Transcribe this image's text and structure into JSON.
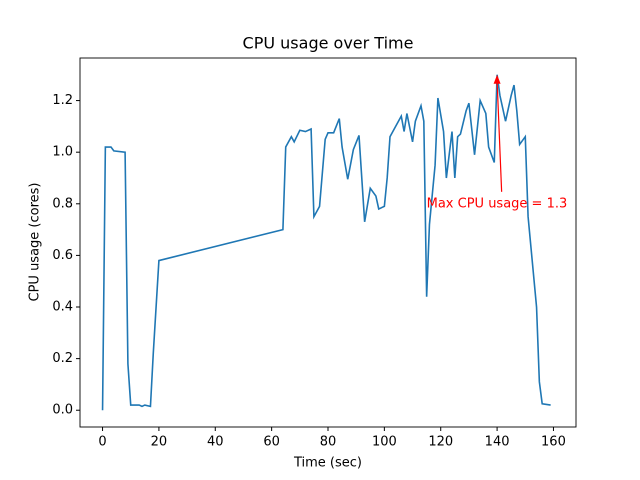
{
  "chart_data": {
    "type": "line",
    "title": "CPU usage over Time",
    "xlabel": "Time (sec)",
    "ylabel": "CPU usage (cores)",
    "x": [
      0,
      1,
      3,
      4,
      8,
      9,
      10,
      13,
      14,
      15,
      17,
      18,
      20,
      64,
      65,
      67,
      68,
      70,
      72,
      74,
      75,
      77,
      79,
      80,
      82,
      84,
      85,
      87,
      89,
      91,
      93,
      95,
      97,
      98,
      100,
      101,
      102,
      104,
      106,
      107,
      108,
      110,
      111,
      113,
      114,
      115,
      116,
      118,
      119,
      121,
      122,
      124,
      125,
      126,
      127,
      129,
      130,
      131,
      132,
      134,
      136,
      137,
      139,
      140,
      141,
      143,
      145,
      146,
      147,
      148,
      150,
      151,
      154,
      155,
      156,
      159
    ],
    "values": [
      0,
      1.02,
      1.02,
      1.005,
      1.0,
      0.18,
      0.02,
      0.02,
      0.015,
      0.02,
      0.015,
      0.22,
      0.58,
      0.7,
      1.02,
      1.06,
      1.04,
      1.085,
      1.08,
      1.09,
      0.75,
      0.79,
      1.05,
      1.075,
      1.075,
      1.13,
      1.02,
      0.895,
      1.01,
      1.065,
      0.73,
      0.86,
      0.83,
      0.78,
      0.79,
      0.9,
      1.06,
      1.1,
      1.14,
      1.08,
      1.15,
      1.04,
      1.12,
      1.18,
      1.12,
      0.44,
      0.72,
      0.95,
      1.21,
      1.08,
      0.9,
      1.08,
      0.9,
      1.06,
      1.07,
      1.16,
      1.19,
      1.09,
      0.99,
      1.2,
      1.15,
      1.02,
      0.96,
      1.3,
      1.22,
      1.12,
      1.22,
      1.26,
      1.16,
      1.03,
      1.06,
      0.75,
      0.4,
      0.11,
      0.025,
      0.02
    ],
    "color": "#1f77b4",
    "xlim": [
      -8,
      168
    ],
    "ylim": [
      -0.065,
      1.365
    ],
    "xticks": [
      0,
      20,
      40,
      60,
      80,
      100,
      120,
      140,
      160
    ],
    "yticks": [
      {
        "value": 0,
        "label": "0.0"
      },
      0.2,
      0.4,
      0.6,
      0.8,
      {
        "value": 1,
        "label": "1.0"
      },
      1.2
    ],
    "annotation": {
      "text": "Max CPU usage = 1.3",
      "xy": [
        140,
        1.3
      ],
      "xytext": [
        115,
        0.8
      ],
      "color": "red"
    }
  }
}
